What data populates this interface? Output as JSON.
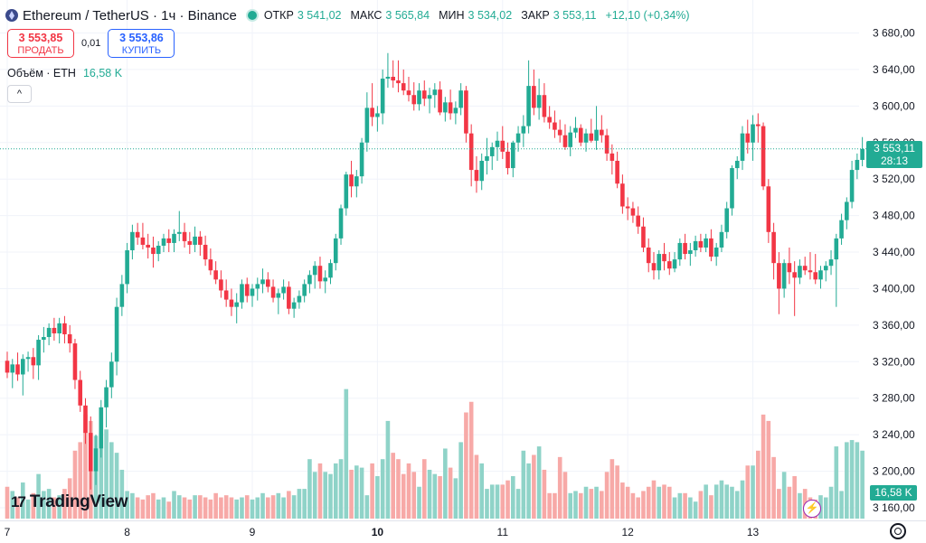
{
  "header": {
    "title": "Ethereum / TetherUS · 1ч · Binance",
    "ohlc": [
      {
        "label": "ОТКР",
        "value": "3 541,02"
      },
      {
        "label": "МАКС",
        "value": "3 565,84"
      },
      {
        "label": "МИН",
        "value": "3 534,02"
      },
      {
        "label": "ЗАКР",
        "value": "3 553,11"
      }
    ],
    "change": "+12,10 (+0,34%)"
  },
  "trade": {
    "sell_price": "3 553,85",
    "sell_label": "ПРОДАТЬ",
    "spread": "0,01",
    "buy_price": "3 553,86",
    "buy_label": "КУПИТЬ"
  },
  "volume_legend": {
    "label": "Объём · ETH",
    "value": "16,58 K"
  },
  "collapse_label": "^",
  "last_price_tag": {
    "price": "3 553,11",
    "countdown": "28:13"
  },
  "volume_tag": "16,58 K",
  "logo": {
    "mark": "17",
    "text": "TradingView"
  },
  "flash_icon": "⚡",
  "colors": {
    "up": "#22ab94",
    "down": "#f23645",
    "up_vol": "#8fd3c8",
    "down_vol": "#f7a9a7",
    "grid": "#f0f3fa",
    "axis_text": "#131722"
  },
  "chart_data": {
    "type": "candlestick",
    "title": "Ethereum / TetherUS · 1ч · Binance",
    "last_price": 3553.11,
    "ylim": [
      3140,
      3700
    ],
    "y_ticks": [
      3160,
      3200,
      3240,
      3280,
      3320,
      3360,
      3400,
      3440,
      3480,
      3520,
      3560,
      3600,
      3640,
      3680
    ],
    "y_tick_labels": [
      "3 160,00",
      "3 200,00",
      "3 240,00",
      "3 280,00",
      "3 320,00",
      "3 360,00",
      "3 400,00",
      "3 440,00",
      "3 480,00",
      "3 520,00",
      "3 560,00",
      "3 600,00",
      "3 640,00",
      "3 680,00"
    ],
    "x_ticks": [
      {
        "label": "7",
        "candle_index": 0
      },
      {
        "label": "8",
        "candle_index": 23
      },
      {
        "label": "9",
        "candle_index": 47
      },
      {
        "label": "10",
        "candle_index": 71
      },
      {
        "label": "11",
        "candle_index": 95
      },
      {
        "label": "12",
        "candle_index": 119
      },
      {
        "label": "13",
        "candle_index": 143
      }
    ],
    "candles": [
      [
        3321,
        3331,
        3302,
        3308,
        1.5
      ],
      [
        3308,
        3323,
        3291,
        3317,
        1.3
      ],
      [
        3317,
        3330,
        3299,
        3306,
        1.0
      ],
      [
        3306,
        3328,
        3283,
        3323,
        1.7
      ],
      [
        3323,
        3331,
        3309,
        3325,
        0.9
      ],
      [
        3325,
        3335,
        3301,
        3316,
        1.2
      ],
      [
        3316,
        3349,
        3300,
        3344,
        2.1
      ],
      [
        3344,
        3358,
        3330,
        3347,
        1.3
      ],
      [
        3347,
        3362,
        3338,
        3357,
        1.4
      ],
      [
        3357,
        3368,
        3343,
        3351,
        1.0
      ],
      [
        3351,
        3368,
        3340,
        3362,
        1.1
      ],
      [
        3362,
        3370,
        3340,
        3350,
        1.4
      ],
      [
        3350,
        3360,
        3330,
        3340,
        1.9
      ],
      [
        3340,
        3345,
        3290,
        3300,
        3.2
      ],
      [
        3300,
        3310,
        3265,
        3272,
        3.6
      ],
      [
        3272,
        3280,
        3230,
        3242,
        4.9
      ],
      [
        3242,
        3260,
        3180,
        3200,
        4.6
      ],
      [
        3200,
        3240,
        3185,
        3225,
        3.9
      ],
      [
        3225,
        3278,
        3215,
        3270,
        3.7
      ],
      [
        3270,
        3300,
        3248,
        3292,
        4.2
      ],
      [
        3292,
        3330,
        3280,
        3320,
        3.6
      ],
      [
        3320,
        3390,
        3305,
        3380,
        3.1
      ],
      [
        3380,
        3415,
        3370,
        3405,
        2.3
      ],
      [
        3405,
        3450,
        3395,
        3442,
        1.3
      ],
      [
        3442,
        3470,
        3432,
        3462,
        1.2
      ],
      [
        3462,
        3472,
        3448,
        3456,
        1.0
      ],
      [
        3456,
        3472,
        3443,
        3448,
        0.9
      ],
      [
        3448,
        3460,
        3433,
        3445,
        1.1
      ],
      [
        3445,
        3457,
        3423,
        3438,
        1.2
      ],
      [
        3438,
        3452,
        3430,
        3447,
        0.9
      ],
      [
        3447,
        3460,
        3440,
        3455,
        1.0
      ],
      [
        3455,
        3465,
        3440,
        3450,
        0.8
      ],
      [
        3450,
        3465,
        3440,
        3460,
        1.3
      ],
      [
        3460,
        3485,
        3452,
        3462,
        1.1
      ],
      [
        3462,
        3472,
        3445,
        3452,
        1.0
      ],
      [
        3452,
        3462,
        3438,
        3448,
        0.9
      ],
      [
        3448,
        3468,
        3440,
        3457,
        1.1
      ],
      [
        3457,
        3463,
        3436,
        3448,
        1.1
      ],
      [
        3448,
        3458,
        3425,
        3432,
        1.0
      ],
      [
        3432,
        3444,
        3415,
        3420,
        0.9
      ],
      [
        3420,
        3430,
        3405,
        3410,
        1.2
      ],
      [
        3410,
        3420,
        3390,
        3398,
        1.0
      ],
      [
        3398,
        3410,
        3380,
        3388,
        1.1
      ],
      [
        3388,
        3400,
        3370,
        3380,
        1.0
      ],
      [
        3380,
        3395,
        3362,
        3385,
        0.9
      ],
      [
        3385,
        3410,
        3378,
        3405,
        1.0
      ],
      [
        3405,
        3412,
        3385,
        3392,
        1.1
      ],
      [
        3392,
        3405,
        3380,
        3400,
        0.9
      ],
      [
        3400,
        3412,
        3387,
        3405,
        1.0
      ],
      [
        3405,
        3422,
        3395,
        3410,
        1.2
      ],
      [
        3410,
        3418,
        3396,
        3402,
        1.0
      ],
      [
        3402,
        3410,
        3385,
        3390,
        1.1
      ],
      [
        3390,
        3400,
        3372,
        3395,
        1.2
      ],
      [
        3395,
        3410,
        3388,
        3402,
        1.0
      ],
      [
        3402,
        3408,
        3372,
        3378,
        1.3
      ],
      [
        3378,
        3390,
        3368,
        3385,
        1.1
      ],
      [
        3385,
        3398,
        3378,
        3392,
        1.4
      ],
      [
        3392,
        3410,
        3385,
        3405,
        1.4
      ],
      [
        3405,
        3420,
        3395,
        3415,
        2.8
      ],
      [
        3415,
        3430,
        3400,
        3425,
        2.2
      ],
      [
        3425,
        3435,
        3400,
        3408,
        2.6
      ],
      [
        3408,
        3420,
        3395,
        3412,
        2.2
      ],
      [
        3412,
        3432,
        3405,
        3428,
        2.1
      ],
      [
        3428,
        3460,
        3420,
        3455,
        2.6
      ],
      [
        3455,
        3492,
        3448,
        3488,
        2.8
      ],
      [
        3488,
        3528,
        3480,
        3525,
        6.1
      ],
      [
        3525,
        3540,
        3500,
        3512,
        2.3
      ],
      [
        3512,
        3530,
        3500,
        3523,
        2.5
      ],
      [
        3523,
        3565,
        3515,
        3560,
        2.4
      ],
      [
        3560,
        3615,
        3550,
        3598,
        1.1
      ],
      [
        3598,
        3625,
        3578,
        3588,
        2.6
      ],
      [
        3588,
        3600,
        3572,
        3592,
        2.0
      ],
      [
        3592,
        3640,
        3580,
        3630,
        2.8
      ],
      [
        3630,
        3658,
        3620,
        3632,
        4.6
      ],
      [
        3632,
        3650,
        3620,
        3628,
        3.1
      ],
      [
        3628,
        3650,
        3615,
        3625,
        2.8
      ],
      [
        3625,
        3640,
        3612,
        3617,
        2.1
      ],
      [
        3617,
        3632,
        3605,
        3612,
        2.6
      ],
      [
        3612,
        3626,
        3595,
        3602,
        2.2
      ],
      [
        3602,
        3625,
        3595,
        3617,
        1.5
      ],
      [
        3617,
        3628,
        3600,
        3608,
        2.8
      ],
      [
        3608,
        3620,
        3592,
        3612,
        2.3
      ],
      [
        3612,
        3625,
        3598,
        3618,
        2.1
      ],
      [
        3618,
        3627,
        3590,
        3593,
        2.0
      ],
      [
        3593,
        3610,
        3583,
        3604,
        3.3
      ],
      [
        3604,
        3618,
        3585,
        3592,
        2.4
      ],
      [
        3592,
        3605,
        3580,
        3598,
        1.9
      ],
      [
        3598,
        3625,
        3590,
        3617,
        3.6
      ],
      [
        3617,
        3622,
        3560,
        3570,
        5.0
      ],
      [
        3570,
        3580,
        3512,
        3530,
        5.5
      ],
      [
        3530,
        3545,
        3505,
        3518,
        3.0
      ],
      [
        3518,
        3548,
        3508,
        3540,
        2.6
      ],
      [
        3540,
        3565,
        3525,
        3545,
        1.4
      ],
      [
        3545,
        3560,
        3530,
        3555,
        1.6
      ],
      [
        3555,
        3572,
        3540,
        3562,
        1.6
      ],
      [
        3562,
        3578,
        3542,
        3550,
        1.6
      ],
      [
        3550,
        3560,
        3525,
        3532,
        1.8
      ],
      [
        3532,
        3562,
        3522,
        3560,
        2.0
      ],
      [
        3560,
        3578,
        3550,
        3570,
        1.4
      ],
      [
        3570,
        3590,
        3555,
        3578,
        3.2
      ],
      [
        3578,
        3650,
        3570,
        3622,
        2.6
      ],
      [
        3622,
        3640,
        3590,
        3598,
        3.0
      ],
      [
        3598,
        3630,
        3585,
        3612,
        3.4
      ],
      [
        3612,
        3625,
        3582,
        3588,
        2.3
      ],
      [
        3588,
        3600,
        3575,
        3582,
        1.2
      ],
      [
        3582,
        3595,
        3565,
        3574,
        1.2
      ],
      [
        3574,
        3585,
        3560,
        3568,
        2.9
      ],
      [
        3568,
        3580,
        3552,
        3555,
        2.2
      ],
      [
        3555,
        3578,
        3545,
        3571,
        1.2
      ],
      [
        3571,
        3588,
        3565,
        3576,
        1.3
      ],
      [
        3576,
        3580,
        3556,
        3560,
        1.2
      ],
      [
        3560,
        3575,
        3550,
        3570,
        1.5
      ],
      [
        3570,
        3586,
        3560,
        3562,
        1.4
      ],
      [
        3562,
        3600,
        3552,
        3574,
        1.5
      ],
      [
        3574,
        3590,
        3560,
        3568,
        1.3
      ],
      [
        3568,
        3575,
        3540,
        3548,
        2.2
      ],
      [
        3548,
        3558,
        3525,
        3540,
        2.8
      ],
      [
        3540,
        3550,
        3510,
        3515,
        2.5
      ],
      [
        3515,
        3525,
        3482,
        3490,
        1.7
      ],
      [
        3490,
        3500,
        3475,
        3488,
        1.5
      ],
      [
        3488,
        3495,
        3472,
        3480,
        1.2
      ],
      [
        3480,
        3490,
        3460,
        3468,
        1.0
      ],
      [
        3468,
        3478,
        3440,
        3445,
        1.3
      ],
      [
        3445,
        3455,
        3418,
        3428,
        1.5
      ],
      [
        3428,
        3440,
        3410,
        3420,
        1.8
      ],
      [
        3420,
        3442,
        3410,
        3438,
        1.5
      ],
      [
        3438,
        3450,
        3420,
        3430,
        1.6
      ],
      [
        3430,
        3440,
        3415,
        3422,
        1.5
      ],
      [
        3422,
        3440,
        3418,
        3432,
        1.0
      ],
      [
        3432,
        3455,
        3425,
        3450,
        1.2
      ],
      [
        3450,
        3460,
        3432,
        3438,
        1.2
      ],
      [
        3438,
        3450,
        3425,
        3442,
        1.0
      ],
      [
        3442,
        3458,
        3435,
        3452,
        0.8
      ],
      [
        3452,
        3460,
        3440,
        3445,
        1.3
      ],
      [
        3445,
        3460,
        3440,
        3455,
        1.6
      ],
      [
        3455,
        3465,
        3430,
        3435,
        1.1
      ],
      [
        3435,
        3450,
        3425,
        3445,
        1.6
      ],
      [
        3445,
        3470,
        3440,
        3462,
        1.8
      ],
      [
        3462,
        3495,
        3455,
        3488,
        1.6
      ],
      [
        3488,
        3535,
        3480,
        3532,
        1.5
      ],
      [
        3532,
        3545,
        3520,
        3540,
        1.3
      ],
      [
        3540,
        3578,
        3530,
        3570,
        1.8
      ],
      [
        3570,
        3585,
        3548,
        3560,
        2.5
      ],
      [
        3560,
        3590,
        3540,
        3580,
        2.5
      ],
      [
        3580,
        3592,
        3560,
        3578,
        3.2
      ],
      [
        3578,
        3582,
        3508,
        3512,
        4.9
      ],
      [
        3512,
        3520,
        3450,
        3462,
        4.6
      ],
      [
        3462,
        3472,
        3410,
        3428,
        2.9
      ],
      [
        3428,
        3440,
        3372,
        3400,
        1.4
      ],
      [
        3400,
        3432,
        3390,
        3428,
        2.2
      ],
      [
        3428,
        3445,
        3405,
        3418,
        1.5
      ],
      [
        3418,
        3430,
        3370,
        3412,
        2.0
      ],
      [
        3412,
        3432,
        3405,
        3425,
        1.2
      ],
      [
        3425,
        3435,
        3415,
        3420,
        1.4
      ],
      [
        3420,
        3440,
        3410,
        3418,
        1.0
      ],
      [
        3418,
        3438,
        3405,
        3410,
        0.9
      ],
      [
        3410,
        3425,
        3400,
        3420,
        1.1
      ],
      [
        3420,
        3430,
        3408,
        3425,
        1.0
      ],
      [
        3425,
        3442,
        3415,
        3432,
        1.5
      ],
      [
        3432,
        3460,
        3380,
        3455,
        3.4
      ],
      [
        3455,
        3482,
        3448,
        3475,
        1.3
      ],
      [
        3475,
        3500,
        3465,
        3495,
        3.6
      ],
      [
        3495,
        3540,
        3488,
        3530,
        3.7
      ],
      [
        3530,
        3548,
        3520,
        3541,
        3.6
      ],
      [
        3541,
        3566,
        3534,
        3553,
        3.2
      ]
    ]
  }
}
